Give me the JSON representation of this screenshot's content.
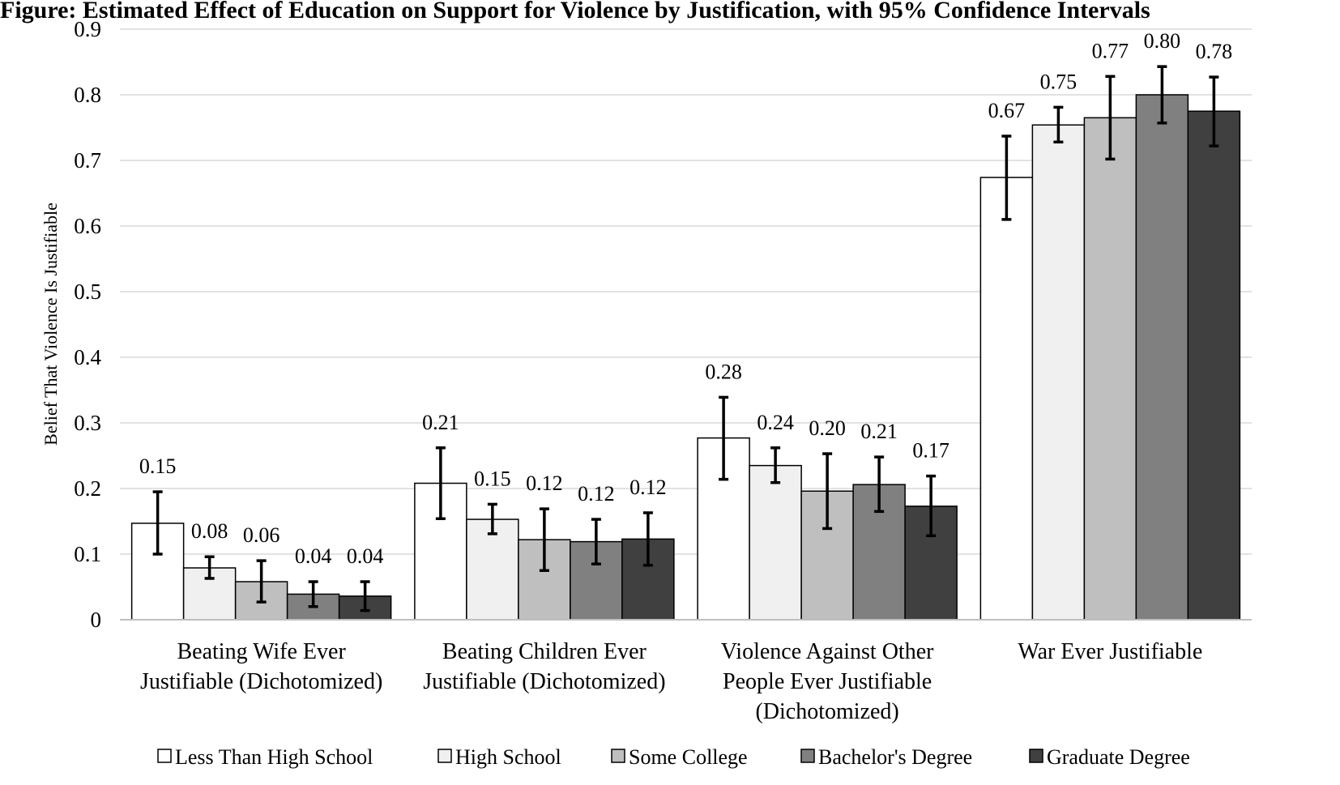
{
  "chart_data": {
    "type": "bar",
    "title": "Figure: Estimated Effect of Education on Support for Violence by Justification, with 95% Confidence Intervals",
    "title_visible_fragments": [
      "Fig",
      "Supp",
      "by",
      ", ",
      "Conf",
      "y"
    ],
    "ylabel": "Belief That Violence Is Justifiable",
    "xlabel": "",
    "ylim": [
      0,
      0.9
    ],
    "yticks": [
      0,
      0.1,
      0.2,
      0.3,
      0.4,
      0.5,
      0.6,
      0.7,
      0.8,
      0.9
    ],
    "ytick_labels": [
      "0",
      "0.1",
      "0.2",
      "0.3",
      "0.4",
      "0.5",
      "0.6",
      "0.7",
      "0.8",
      "0.9"
    ],
    "grid": true,
    "legend_position": "bottom",
    "categories": [
      [
        "Beating Wife Ever",
        "Justifiable (Dichotomized)"
      ],
      [
        "Beating Children Ever",
        "Justifiable (Dichotomized)"
      ],
      [
        "Violence Against Other",
        "People Ever Justifiable",
        "(Dichotomized)"
      ],
      [
        "War Ever Justifiable"
      ]
    ],
    "series": [
      {
        "name": "Less Than High School",
        "color": "#ffffff",
        "values": [
          0.147,
          0.208,
          0.277,
          0.674
        ],
        "labels": [
          "0.15",
          "0.21",
          "0.28",
          "0.67"
        ],
        "ci": [
          [
            0.1,
            0.195
          ],
          [
            0.154,
            0.262
          ],
          [
            0.214,
            0.339
          ],
          [
            0.61,
            0.737
          ]
        ]
      },
      {
        "name": "High School",
        "color": "#f0f0f0",
        "values": [
          0.079,
          0.153,
          0.235,
          0.754
        ],
        "labels": [
          "0.08",
          "0.15",
          "0.24",
          "0.75"
        ],
        "ci": [
          [
            0.063,
            0.096
          ],
          [
            0.131,
            0.176
          ],
          [
            0.209,
            0.262
          ],
          [
            0.728,
            0.781
          ]
        ]
      },
      {
        "name": "Some College",
        "color": "#bfbfbf",
        "values": [
          0.058,
          0.122,
          0.196,
          0.765
        ],
        "labels": [
          "0.06",
          "0.12",
          "0.20",
          "0.77"
        ],
        "ci": [
          [
            0.027,
            0.09
          ],
          [
            0.075,
            0.169
          ],
          [
            0.139,
            0.253
          ],
          [
            0.702,
            0.828
          ]
        ]
      },
      {
        "name": "Bachelor's Degree",
        "color": "#808080",
        "values": [
          0.039,
          0.119,
          0.206,
          0.8
        ],
        "labels": [
          "0.04",
          "0.12",
          "0.21",
          "0.80"
        ],
        "ci": [
          [
            0.02,
            0.058
          ],
          [
            0.085,
            0.153
          ],
          [
            0.165,
            0.248
          ],
          [
            0.757,
            0.843
          ]
        ]
      },
      {
        "name": "Graduate Degree",
        "color": "#404040",
        "values": [
          0.036,
          0.123,
          0.173,
          0.775
        ],
        "labels": [
          "0.04",
          "0.12",
          "0.17",
          "0.78"
        ],
        "ci": [
          [
            0.014,
            0.058
          ],
          [
            0.083,
            0.163
          ],
          [
            0.128,
            0.219
          ],
          [
            0.722,
            0.827
          ]
        ]
      }
    ]
  },
  "colors": {
    "grid": "#d9d9d9",
    "axis": "#bfbfbf",
    "bar_outline": "#000000",
    "error_bar": "#000000"
  }
}
